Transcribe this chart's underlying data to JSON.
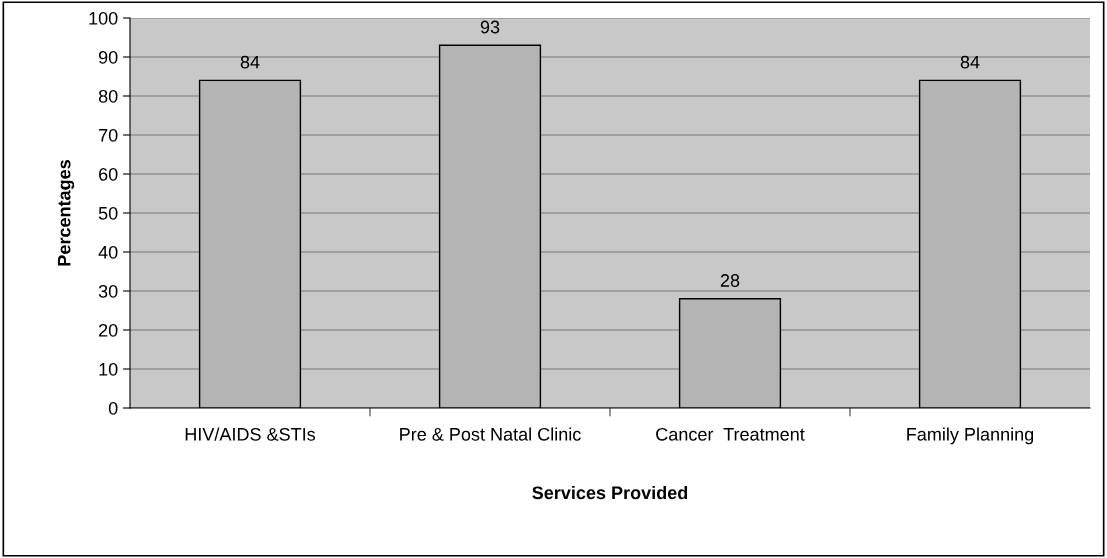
{
  "chart_data": {
    "type": "bar",
    "xlabel": "Services Provided",
    "ylabel": "Percentages",
    "categories": [
      "HIV/AIDS &STIs",
      "Pre & Post Natal Clinic",
      "Cancer  Treatment",
      "Family Planning"
    ],
    "values": [
      84,
      93,
      28,
      84
    ],
    "color": "#b4b4b4",
    "ylim": [
      0,
      100
    ],
    "yticks": [
      0,
      10,
      20,
      30,
      40,
      50,
      60,
      70,
      80,
      90,
      100
    ],
    "grid": "y",
    "data_labels": true
  }
}
